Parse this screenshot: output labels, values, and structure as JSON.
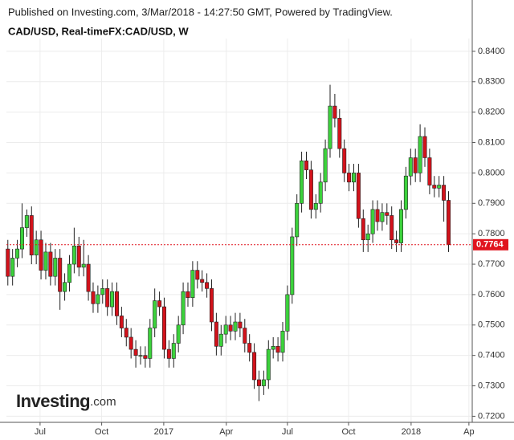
{
  "header": "Published on Investing.com, 3/Mar/2018 - 14:27:50 GMT, Powered by TradingView.",
  "logo": {
    "main": "Investing",
    "suffix": ".com"
  },
  "chart_data": {
    "type": "candlestick",
    "title": "CAD/USD, Real-timeFX:CAD/USD, W",
    "categories": [
      null,
      null,
      null,
      null,
      null,
      null,
      null,
      null,
      null,
      null,
      null,
      null,
      null,
      null,
      null,
      null,
      null,
      null,
      null,
      null,
      null,
      null,
      null,
      null,
      null,
      null,
      null,
      null,
      null,
      null,
      null,
      null,
      null,
      null,
      null,
      null,
      null,
      null,
      null,
      null,
      null,
      null,
      null,
      null,
      null,
      null,
      null,
      null,
      null,
      null,
      null,
      null,
      null,
      null,
      null,
      null,
      null,
      null,
      null,
      null,
      null,
      null,
      null,
      null,
      null,
      null,
      null,
      null,
      null,
      null,
      null,
      null,
      null,
      null,
      null,
      null,
      null,
      null,
      null,
      null,
      null,
      null,
      null,
      null,
      null,
      null,
      null,
      null,
      null,
      null,
      null,
      null,
      null,
      null
    ],
    "xlim": [
      -0.3,
      98
    ],
    "xticks": [
      {
        "value": 6.8,
        "label": "Jul"
      },
      {
        "value": 19.8,
        "label": "Oct"
      },
      {
        "value": 32.9,
        "label": "2017"
      },
      {
        "value": 46.1,
        "label": "Apr"
      },
      {
        "value": 59,
        "label": "Jul"
      },
      {
        "value": 71.9,
        "label": "Oct"
      },
      {
        "value": 85.1,
        "label": "2018"
      },
      {
        "value": 97.3,
        "label": "Ap"
      }
    ],
    "ylim": [
      0.718,
      0.8442
    ],
    "yticks": [
      {
        "value": 0.72,
        "label": "0.7200"
      },
      {
        "value": 0.73,
        "label": "0.7300"
      },
      {
        "value": 0.74,
        "label": "0.7400"
      },
      {
        "value": 0.75,
        "label": "0.7500"
      },
      {
        "value": 0.76,
        "label": "0.7600"
      },
      {
        "value": 0.77,
        "label": "0.7700"
      },
      {
        "value": 0.78,
        "label": "0.7800"
      },
      {
        "value": 0.79,
        "label": "0.7900"
      },
      {
        "value": 0.8,
        "label": "0.8000"
      },
      {
        "value": 0.81,
        "label": "0.8100"
      },
      {
        "value": 0.82,
        "label": "0.8200"
      },
      {
        "value": 0.83,
        "label": "0.8300"
      },
      {
        "value": 0.84,
        "label": "0.8400"
      }
    ],
    "grid": true,
    "up_color": "#3cd23c",
    "down_color": "#d3121b",
    "last_color": "#e0141e",
    "last_value_label": "0.7764",
    "series": [
      {
        "name": "CAD/USD",
        "open": [
          0.775,
          0.766,
          0.772,
          0.775,
          0.782,
          0.786,
          0.773,
          0.778,
          0.768,
          0.774,
          0.766,
          0.772,
          0.761,
          0.764,
          0.77,
          0.776,
          0.769,
          0.77,
          0.761,
          0.757,
          0.76,
          0.762,
          0.756,
          0.761,
          0.753,
          0.749,
          0.746,
          0.742,
          0.74,
          0.74,
          0.739,
          0.749,
          0.758,
          0.756,
          0.742,
          0.739,
          0.744,
          0.75,
          0.761,
          0.759,
          0.768,
          0.765,
          0.764,
          0.762,
          0.751,
          0.743,
          0.747,
          0.75,
          0.748,
          0.751,
          0.749,
          0.744,
          0.741,
          0.732,
          0.73,
          0.732,
          0.742,
          0.743,
          0.741,
          0.748,
          0.76,
          0.779,
          0.79,
          0.804,
          0.801,
          0.788,
          0.79,
          0.797,
          0.808,
          0.822,
          0.818,
          0.808,
          0.8,
          0.797,
          0.8,
          0.785,
          0.778,
          0.78,
          0.788,
          0.784,
          0.787,
          0.786,
          0.778,
          0.777,
          0.788,
          0.799,
          0.805,
          0.8,
          0.812,
          0.805,
          0.796,
          0.795,
          0.796,
          0.791
        ],
        "high": [
          0.778,
          0.775,
          0.778,
          0.79,
          0.788,
          0.789,
          0.781,
          0.781,
          0.777,
          0.777,
          0.775,
          0.775,
          0.767,
          0.773,
          0.782,
          0.779,
          0.778,
          0.773,
          0.764,
          0.763,
          0.765,
          0.765,
          0.764,
          0.764,
          0.756,
          0.752,
          0.749,
          0.745,
          0.743,
          0.743,
          0.752,
          0.762,
          0.761,
          0.759,
          0.745,
          0.747,
          0.753,
          0.764,
          0.764,
          0.771,
          0.771,
          0.768,
          0.767,
          0.765,
          0.754,
          0.75,
          0.753,
          0.753,
          0.754,
          0.754,
          0.752,
          0.747,
          0.744,
          0.735,
          0.735,
          0.745,
          0.746,
          0.746,
          0.751,
          0.763,
          0.782,
          0.793,
          0.807,
          0.807,
          0.804,
          0.793,
          0.8,
          0.811,
          0.829,
          0.826,
          0.821,
          0.811,
          0.803,
          0.803,
          0.803,
          0.788,
          0.783,
          0.791,
          0.791,
          0.79,
          0.79,
          0.789,
          0.781,
          0.791,
          0.802,
          0.808,
          0.808,
          0.816,
          0.815,
          0.808,
          0.799,
          0.799,
          0.799,
          0.794
        ],
        "low": [
          0.763,
          0.763,
          0.769,
          0.772,
          0.779,
          0.77,
          0.77,
          0.765,
          0.765,
          0.763,
          0.763,
          0.755,
          0.758,
          0.761,
          0.767,
          0.766,
          0.766,
          0.758,
          0.754,
          0.754,
          0.757,
          0.753,
          0.753,
          0.75,
          0.746,
          0.743,
          0.739,
          0.736,
          0.737,
          0.736,
          0.736,
          0.746,
          0.753,
          0.739,
          0.736,
          0.736,
          0.741,
          0.747,
          0.756,
          0.756,
          0.762,
          0.761,
          0.759,
          0.748,
          0.74,
          0.74,
          0.744,
          0.745,
          0.745,
          0.746,
          0.741,
          0.738,
          0.729,
          0.725,
          0.727,
          0.729,
          0.739,
          0.738,
          0.738,
          0.745,
          0.757,
          0.776,
          0.787,
          0.798,
          0.785,
          0.785,
          0.787,
          0.794,
          0.805,
          0.815,
          0.805,
          0.797,
          0.794,
          0.794,
          0.782,
          0.774,
          0.774,
          0.777,
          0.781,
          0.781,
          0.783,
          0.775,
          0.774,
          0.774,
          0.785,
          0.796,
          0.797,
          0.797,
          0.802,
          0.793,
          0.792,
          0.792,
          0.784,
          0.774
        ],
        "close": [
          0.766,
          0.772,
          0.775,
          0.782,
          0.786,
          0.773,
          0.778,
          0.768,
          0.774,
          0.766,
          0.772,
          0.761,
          0.764,
          0.77,
          0.776,
          0.769,
          0.77,
          0.761,
          0.757,
          0.76,
          0.762,
          0.756,
          0.761,
          0.753,
          0.749,
          0.746,
          0.742,
          0.74,
          0.74,
          0.739,
          0.749,
          0.758,
          0.756,
          0.742,
          0.739,
          0.744,
          0.75,
          0.761,
          0.759,
          0.768,
          0.765,
          0.764,
          0.762,
          0.751,
          0.743,
          0.747,
          0.75,
          0.748,
          0.751,
          0.749,
          0.744,
          0.741,
          0.732,
          0.73,
          0.732,
          0.742,
          0.743,
          0.741,
          0.748,
          0.76,
          0.779,
          0.79,
          0.804,
          0.801,
          0.788,
          0.79,
          0.797,
          0.808,
          0.822,
          0.818,
          0.808,
          0.8,
          0.797,
          0.8,
          0.785,
          0.778,
          0.78,
          0.788,
          0.784,
          0.787,
          0.786,
          0.778,
          0.777,
          0.788,
          0.799,
          0.805,
          0.8,
          0.812,
          0.805,
          0.796,
          0.795,
          0.796,
          0.791,
          0.7764
        ]
      }
    ]
  }
}
